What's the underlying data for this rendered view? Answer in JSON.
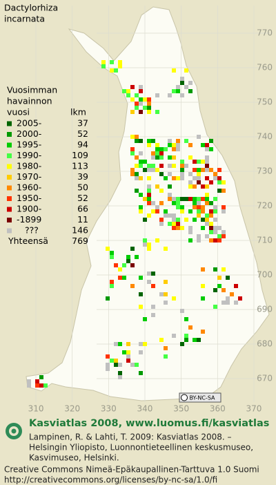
{
  "title_lines": [
    "Dactylorhiza",
    "incarnata"
  ],
  "legend": {
    "heading_lines": [
      "Vuosimman",
      "havainnon",
      "vuosi"
    ],
    "count_heading": "lkm",
    "rows": [
      {
        "label": "2005-",
        "count": 37,
        "color": "#006400"
      },
      {
        "label": "2000-",
        "count": 52,
        "color": "#009900"
      },
      {
        "label": "1995-",
        "count": 94,
        "color": "#00cc00"
      },
      {
        "label": "1990-",
        "count": 109,
        "color": "#44ff44"
      },
      {
        "label": "1980-",
        "count": 113,
        "color": "#ffff00"
      },
      {
        "label": "1970-",
        "count": 39,
        "color": "#ffcc00"
      },
      {
        "label": "1960-",
        "count": 50,
        "color": "#ff8800"
      },
      {
        "label": "1950-",
        "count": 52,
        "color": "#ff3300"
      },
      {
        "label": "1900-",
        "count": 66,
        "color": "#cc0000"
      },
      {
        "label": "-1899",
        "count": 11,
        "color": "#7a0000"
      },
      {
        "label": "???",
        "count": 146,
        "color": "#c0c0c0"
      }
    ],
    "total_label": "Yhteensä",
    "total": 769
  },
  "map": {
    "ylim": [
      662,
      778
    ],
    "yticks": [
      670,
      680,
      690,
      700,
      710,
      720,
      730,
      740,
      750,
      760,
      770
    ],
    "xlim": [
      302,
      372
    ],
    "xticks": [
      310,
      320,
      330,
      340,
      350,
      360,
      370
    ]
  },
  "badge": "BY-NC-SA",
  "footer": {
    "site": "Kasviatlas 2008, www.luomus.fi/kasviatlas",
    "citation_lines": [
      "Lampinen, R. & Lahti, T. 2009: Kasviatlas 2008. –",
      "Helsingin Yliopisto, Luonnontieteellinen keskusmuseo,",
      "Kasvimuseo, Helsinki."
    ],
    "license_lines": [
      "Creative Commons Nimeä-Epäkaupallinen-Tarttuva 1.0 Suomi",
      "http://creativecommons.org/licenses/by-nc-sa/1.0/fi"
    ]
  }
}
